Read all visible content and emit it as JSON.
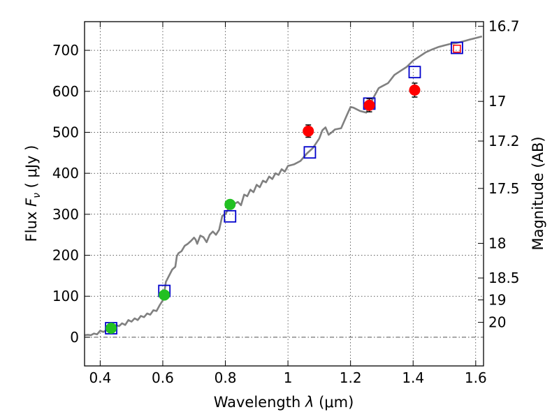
{
  "chart_data": {
    "type": "scatter",
    "xlabel_prefix": "Wavelength",
    "xlabel_symbol": "λ",
    "xlabel_unit": "(μm)",
    "ylabel_prefix": "Flux",
    "ylabel_symbol": "F",
    "ylabel_subscript": "ν",
    "ylabel_unit": "( μJy )",
    "y2label": "Magnitude (AB)",
    "xlim": [
      0.35,
      1.625
    ],
    "ylim": [
      -70,
      770
    ],
    "x_ticks": [
      {
        "value": 0.4,
        "label": "0.4"
      },
      {
        "value": 0.6,
        "label": "0.6"
      },
      {
        "value": 0.8,
        "label": "0.8"
      },
      {
        "value": 1.0,
        "label": "1"
      },
      {
        "value": 1.2,
        "label": "1.2"
      },
      {
        "value": 1.4,
        "label": "1.4"
      },
      {
        "value": 1.6,
        "label": "1.6"
      }
    ],
    "y_ticks": [
      {
        "value": 0,
        "label": "0"
      },
      {
        "value": 100,
        "label": "100"
      },
      {
        "value": 200,
        "label": "200"
      },
      {
        "value": 300,
        "label": "300"
      },
      {
        "value": 400,
        "label": "400"
      },
      {
        "value": 500,
        "label": "500"
      },
      {
        "value": 600,
        "label": "600"
      },
      {
        "value": 700,
        "label": "700"
      }
    ],
    "mag_ticks": [
      {
        "value": 16.7,
        "label": "16.7"
      },
      {
        "value": 17,
        "label": "17"
      },
      {
        "value": 17.2,
        "label": "17.2"
      },
      {
        "value": 17.5,
        "label": "17.5"
      },
      {
        "value": 18,
        "label": "18"
      },
      {
        "value": 18.5,
        "label": "18.5"
      },
      {
        "value": 19,
        "label": "19"
      },
      {
        "value": 20,
        "label": "20"
      }
    ],
    "grid": true,
    "zero_line": 0,
    "colors": {
      "model_line": "#808080",
      "model_box": "#0000cc",
      "red_points": "#ff0000",
      "green_points": "#22c022",
      "red_box": "#ff0000",
      "error_bar": "#000000",
      "zero_line": "#555555"
    },
    "model_spectrum": [
      [
        0.35,
        5
      ],
      [
        0.36,
        6
      ],
      [
        0.37,
        5
      ],
      [
        0.38,
        9
      ],
      [
        0.39,
        7
      ],
      [
        0.4,
        16
      ],
      [
        0.41,
        13
      ],
      [
        0.42,
        17
      ],
      [
        0.43,
        21
      ],
      [
        0.44,
        27
      ],
      [
        0.45,
        30
      ],
      [
        0.46,
        27
      ],
      [
        0.47,
        34
      ],
      [
        0.48,
        30
      ],
      [
        0.49,
        42
      ],
      [
        0.5,
        38
      ],
      [
        0.51,
        46
      ],
      [
        0.52,
        42
      ],
      [
        0.53,
        52
      ],
      [
        0.54,
        49
      ],
      [
        0.55,
        58
      ],
      [
        0.56,
        55
      ],
      [
        0.57,
        66
      ],
      [
        0.58,
        64
      ],
      [
        0.59,
        78
      ],
      [
        0.6,
        90
      ],
      [
        0.605,
        110
      ],
      [
        0.61,
        135
      ],
      [
        0.62,
        150
      ],
      [
        0.63,
        165
      ],
      [
        0.64,
        172
      ],
      [
        0.645,
        198
      ],
      [
        0.65,
        205
      ],
      [
        0.66,
        210
      ],
      [
        0.67,
        223
      ],
      [
        0.68,
        228
      ],
      [
        0.69,
        235
      ],
      [
        0.7,
        243
      ],
      [
        0.705,
        238
      ],
      [
        0.71,
        228
      ],
      [
        0.72,
        248
      ],
      [
        0.73,
        244
      ],
      [
        0.74,
        232
      ],
      [
        0.75,
        250
      ],
      [
        0.76,
        258
      ],
      [
        0.77,
        250
      ],
      [
        0.78,
        262
      ],
      [
        0.79,
        296
      ],
      [
        0.8,
        300
      ],
      [
        0.81,
        314
      ],
      [
        0.82,
        318
      ],
      [
        0.83,
        326
      ],
      [
        0.84,
        330
      ],
      [
        0.85,
        322
      ],
      [
        0.86,
        348
      ],
      [
        0.87,
        344
      ],
      [
        0.88,
        360
      ],
      [
        0.89,
        354
      ],
      [
        0.9,
        372
      ],
      [
        0.91,
        366
      ],
      [
        0.92,
        382
      ],
      [
        0.93,
        378
      ],
      [
        0.94,
        392
      ],
      [
        0.95,
        386
      ],
      [
        0.96,
        400
      ],
      [
        0.97,
        396
      ],
      [
        0.98,
        410
      ],
      [
        0.99,
        404
      ],
      [
        1.0,
        418
      ],
      [
        1.02,
        422
      ],
      [
        1.04,
        430
      ],
      [
        1.06,
        448
      ],
      [
        1.08,
        462
      ],
      [
        1.1,
        485
      ],
      [
        1.11,
        505
      ],
      [
        1.12,
        512
      ],
      [
        1.13,
        494
      ],
      [
        1.14,
        500
      ],
      [
        1.15,
        507
      ],
      [
        1.17,
        510
      ],
      [
        1.19,
        545
      ],
      [
        1.2,
        562
      ],
      [
        1.21,
        560
      ],
      [
        1.23,
        552
      ],
      [
        1.25,
        548
      ],
      [
        1.27,
        580
      ],
      [
        1.29,
        608
      ],
      [
        1.3,
        612
      ],
      [
        1.32,
        620
      ],
      [
        1.34,
        640
      ],
      [
        1.36,
        650
      ],
      [
        1.38,
        660
      ],
      [
        1.4,
        675
      ],
      [
        1.42,
        685
      ],
      [
        1.44,
        695
      ],
      [
        1.46,
        702
      ],
      [
        1.48,
        708
      ],
      [
        1.5,
        712
      ],
      [
        1.52,
        716
      ],
      [
        1.54,
        718
      ],
      [
        1.56,
        722
      ],
      [
        1.58,
        726
      ],
      [
        1.6,
        730
      ],
      [
        1.62,
        734
      ]
    ],
    "model_boxes": [
      {
        "x": 0.435,
        "y": 22
      },
      {
        "x": 0.605,
        "y": 113
      },
      {
        "x": 0.815,
        "y": 295
      },
      {
        "x": 1.07,
        "y": 451
      },
      {
        "x": 1.26,
        "y": 570
      },
      {
        "x": 1.405,
        "y": 647
      },
      {
        "x": 1.54,
        "y": 706
      }
    ],
    "green_points": [
      {
        "x": 0.435,
        "y": 22,
        "err": 3
      },
      {
        "x": 0.605,
        "y": 103,
        "err": 5
      },
      {
        "x": 0.815,
        "y": 324,
        "err": 10
      }
    ],
    "red_points": [
      {
        "x": 1.065,
        "y": 503,
        "err": 15
      },
      {
        "x": 1.26,
        "y": 566,
        "err": 16
      },
      {
        "x": 1.405,
        "y": 603,
        "err": 17
      }
    ],
    "red_boxes": [
      {
        "x": 1.54,
        "y": 704
      }
    ]
  }
}
